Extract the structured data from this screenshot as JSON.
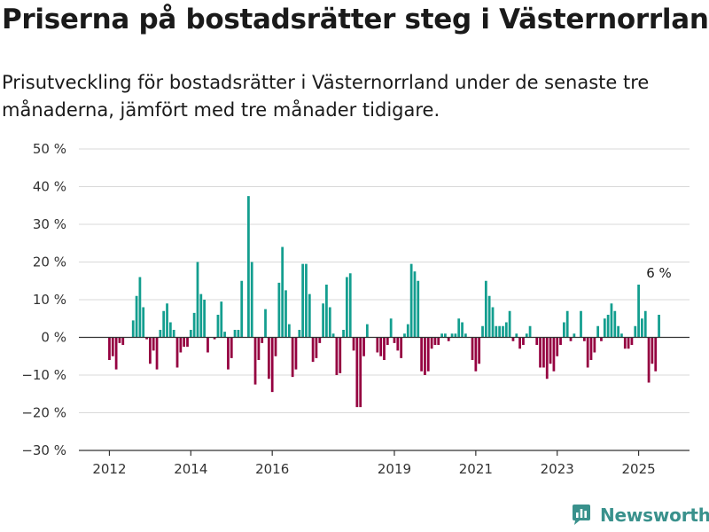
{
  "header": {
    "title": "Priserna på bostadsrätter steg i Västernorrland",
    "subtitle": "Prisutveckling för bostadsrätter i Västernorrland under de senaste tre månaderna, jämfört med tre månader tidigare."
  },
  "brand": {
    "name": "Newsworthy",
    "icon": "newsworthy-logo-icon",
    "color": "#39918c"
  },
  "chart_data": {
    "type": "bar",
    "title": "Priserna på bostadsrätter steg i Västernorrland",
    "subtitle": "Prisutveckling för bostadsrätter i Västernorrland under de senaste tre månaderna, jämfört med tre månader tidigare.",
    "unit": "%",
    "ylim": [
      -30,
      50
    ],
    "yticks": [
      {
        "value": 50,
        "label": "50 %"
      },
      {
        "value": 40,
        "label": "40 %"
      },
      {
        "value": 30,
        "label": "30 %"
      },
      {
        "value": 20,
        "label": "20 %"
      },
      {
        "value": 10,
        "label": "10 %"
      },
      {
        "value": 0,
        "label": "0 %"
      },
      {
        "value": -10,
        "label": "−10 %"
      },
      {
        "value": -20,
        "label": "−20 %"
      },
      {
        "value": -30,
        "label": "−30 %"
      }
    ],
    "xticks": [
      {
        "x": 2012,
        "label": "2012"
      },
      {
        "x": 2014,
        "label": "2014"
      },
      {
        "x": 2016,
        "label": "2016"
      },
      {
        "x": 2019,
        "label": "2019"
      },
      {
        "x": 2021,
        "label": "2021"
      },
      {
        "x": 2023,
        "label": "2023"
      },
      {
        "x": 2025,
        "label": "2025"
      }
    ],
    "xlim": [
      2011.25,
      2026.25
    ],
    "grid": true,
    "colors": {
      "positive": "#139e8f",
      "negative": "#950040",
      "grid": "#d9d9d9",
      "axis": "#333333"
    },
    "annotation": {
      "label": "6 %",
      "x": 2025.5,
      "y": 6
    },
    "points": [
      {
        "x": 2012.0,
        "y": -6
      },
      {
        "x": 2012.083,
        "y": -5
      },
      {
        "x": 2012.167,
        "y": -8.5
      },
      {
        "x": 2012.25,
        "y": -1.5
      },
      {
        "x": 2012.333,
        "y": -2
      },
      {
        "x": 2012.417,
        "y": 0
      },
      {
        "x": 2012.5,
        "y": 0
      },
      {
        "x": 2012.583,
        "y": 4.5
      },
      {
        "x": 2012.667,
        "y": 11
      },
      {
        "x": 2012.75,
        "y": 16
      },
      {
        "x": 2012.833,
        "y": 8
      },
      {
        "x": 2012.917,
        "y": -0.5
      },
      {
        "x": 2013.0,
        "y": -7
      },
      {
        "x": 2013.083,
        "y": -3.5
      },
      {
        "x": 2013.167,
        "y": -8.5
      },
      {
        "x": 2013.25,
        "y": 2
      },
      {
        "x": 2013.333,
        "y": 7
      },
      {
        "x": 2013.417,
        "y": 9
      },
      {
        "x": 2013.5,
        "y": 4
      },
      {
        "x": 2013.583,
        "y": 2
      },
      {
        "x": 2013.667,
        "y": -8
      },
      {
        "x": 2013.75,
        "y": -4
      },
      {
        "x": 2013.833,
        "y": -2.5
      },
      {
        "x": 2013.917,
        "y": -2.5
      },
      {
        "x": 2014.0,
        "y": 2
      },
      {
        "x": 2014.083,
        "y": 6.5
      },
      {
        "x": 2014.167,
        "y": 20
      },
      {
        "x": 2014.25,
        "y": 11.5
      },
      {
        "x": 2014.333,
        "y": 10
      },
      {
        "x": 2014.417,
        "y": -4
      },
      {
        "x": 2014.5,
        "y": 0
      },
      {
        "x": 2014.583,
        "y": -0.5
      },
      {
        "x": 2014.667,
        "y": 6
      },
      {
        "x": 2014.75,
        "y": 9.5
      },
      {
        "x": 2014.833,
        "y": 1.5
      },
      {
        "x": 2014.917,
        "y": -8.5
      },
      {
        "x": 2015.0,
        "y": -5.5
      },
      {
        "x": 2015.083,
        "y": 2
      },
      {
        "x": 2015.167,
        "y": 2
      },
      {
        "x": 2015.25,
        "y": 15
      },
      {
        "x": 2015.333,
        "y": 0
      },
      {
        "x": 2015.417,
        "y": 37.5
      },
      {
        "x": 2015.5,
        "y": 20
      },
      {
        "x": 2015.583,
        "y": -12.5
      },
      {
        "x": 2015.667,
        "y": -6
      },
      {
        "x": 2015.75,
        "y": -1.5
      },
      {
        "x": 2015.833,
        "y": 7.5
      },
      {
        "x": 2015.917,
        "y": -11
      },
      {
        "x": 2016.0,
        "y": -14.5
      },
      {
        "x": 2016.083,
        "y": -5
      },
      {
        "x": 2016.167,
        "y": 14.5
      },
      {
        "x": 2016.25,
        "y": 24
      },
      {
        "x": 2016.333,
        "y": 12.5
      },
      {
        "x": 2016.417,
        "y": 3.5
      },
      {
        "x": 2016.5,
        "y": -10.5
      },
      {
        "x": 2016.583,
        "y": -8.5
      },
      {
        "x": 2016.667,
        "y": 2
      },
      {
        "x": 2016.75,
        "y": 19.5
      },
      {
        "x": 2016.833,
        "y": 19.5
      },
      {
        "x": 2016.917,
        "y": 11.5
      },
      {
        "x": 2017.0,
        "y": -6.5
      },
      {
        "x": 2017.083,
        "y": -5.5
      },
      {
        "x": 2017.167,
        "y": -1.5
      },
      {
        "x": 2017.25,
        "y": 9
      },
      {
        "x": 2017.333,
        "y": 14
      },
      {
        "x": 2017.417,
        "y": 8
      },
      {
        "x": 2017.5,
        "y": 1
      },
      {
        "x": 2017.583,
        "y": -10
      },
      {
        "x": 2017.667,
        "y": -9.5
      },
      {
        "x": 2017.75,
        "y": 2
      },
      {
        "x": 2017.833,
        "y": 16
      },
      {
        "x": 2017.917,
        "y": 17
      },
      {
        "x": 2018.0,
        "y": -3.5
      },
      {
        "x": 2018.083,
        "y": -18.5
      },
      {
        "x": 2018.167,
        "y": -18.5
      },
      {
        "x": 2018.25,
        "y": -5
      },
      {
        "x": 2018.333,
        "y": 3.5
      },
      {
        "x": 2018.417,
        "y": 0
      },
      {
        "x": 2018.5,
        "y": 0
      },
      {
        "x": 2018.583,
        "y": -4
      },
      {
        "x": 2018.667,
        "y": -5
      },
      {
        "x": 2018.75,
        "y": -6
      },
      {
        "x": 2018.833,
        "y": -2
      },
      {
        "x": 2018.917,
        "y": 5
      },
      {
        "x": 2019.0,
        "y": -1.5
      },
      {
        "x": 2019.083,
        "y": -3.5
      },
      {
        "x": 2019.167,
        "y": -5.5
      },
      {
        "x": 2019.25,
        "y": 1
      },
      {
        "x": 2019.333,
        "y": 3.5
      },
      {
        "x": 2019.417,
        "y": 19.5
      },
      {
        "x": 2019.5,
        "y": 17.5
      },
      {
        "x": 2019.583,
        "y": 15
      },
      {
        "x": 2019.667,
        "y": -9
      },
      {
        "x": 2019.75,
        "y": -10
      },
      {
        "x": 2019.833,
        "y": -9
      },
      {
        "x": 2019.917,
        "y": -3
      },
      {
        "x": 2020.0,
        "y": -2
      },
      {
        "x": 2020.083,
        "y": -2
      },
      {
        "x": 2020.167,
        "y": 1
      },
      {
        "x": 2020.25,
        "y": 1
      },
      {
        "x": 2020.333,
        "y": -1
      },
      {
        "x": 2020.417,
        "y": 1
      },
      {
        "x": 2020.5,
        "y": 1
      },
      {
        "x": 2020.583,
        "y": 5
      },
      {
        "x": 2020.667,
        "y": 4
      },
      {
        "x": 2020.75,
        "y": 1
      },
      {
        "x": 2020.833,
        "y": 0
      },
      {
        "x": 2020.917,
        "y": -6
      },
      {
        "x": 2021.0,
        "y": -9
      },
      {
        "x": 2021.083,
        "y": -7
      },
      {
        "x": 2021.167,
        "y": 3
      },
      {
        "x": 2021.25,
        "y": 15
      },
      {
        "x": 2021.333,
        "y": 11
      },
      {
        "x": 2021.417,
        "y": 8
      },
      {
        "x": 2021.5,
        "y": 3
      },
      {
        "x": 2021.583,
        "y": 3
      },
      {
        "x": 2021.667,
        "y": 3
      },
      {
        "x": 2021.75,
        "y": 4
      },
      {
        "x": 2021.833,
        "y": 7
      },
      {
        "x": 2021.917,
        "y": -1
      },
      {
        "x": 2022.0,
        "y": 1
      },
      {
        "x": 2022.083,
        "y": -3
      },
      {
        "x": 2022.167,
        "y": -2
      },
      {
        "x": 2022.25,
        "y": 1
      },
      {
        "x": 2022.333,
        "y": 3
      },
      {
        "x": 2022.417,
        "y": 0
      },
      {
        "x": 2022.5,
        "y": -2
      },
      {
        "x": 2022.583,
        "y": -8
      },
      {
        "x": 2022.667,
        "y": -8
      },
      {
        "x": 2022.75,
        "y": -11
      },
      {
        "x": 2022.833,
        "y": -7
      },
      {
        "x": 2022.917,
        "y": -9
      },
      {
        "x": 2023.0,
        "y": -5
      },
      {
        "x": 2023.083,
        "y": -2
      },
      {
        "x": 2023.167,
        "y": 4
      },
      {
        "x": 2023.25,
        "y": 7
      },
      {
        "x": 2023.333,
        "y": -1
      },
      {
        "x": 2023.417,
        "y": 1
      },
      {
        "x": 2023.5,
        "y": 0
      },
      {
        "x": 2023.583,
        "y": 7
      },
      {
        "x": 2023.667,
        "y": -1
      },
      {
        "x": 2023.75,
        "y": -8
      },
      {
        "x": 2023.833,
        "y": -6
      },
      {
        "x": 2023.917,
        "y": -4
      },
      {
        "x": 2024.0,
        "y": 3
      },
      {
        "x": 2024.083,
        "y": -1
      },
      {
        "x": 2024.167,
        "y": 5
      },
      {
        "x": 2024.25,
        "y": 6
      },
      {
        "x": 2024.333,
        "y": 9
      },
      {
        "x": 2024.417,
        "y": 7
      },
      {
        "x": 2024.5,
        "y": 3
      },
      {
        "x": 2024.583,
        "y": 1
      },
      {
        "x": 2024.667,
        "y": -3
      },
      {
        "x": 2024.75,
        "y": -3
      },
      {
        "x": 2024.833,
        "y": -2
      },
      {
        "x": 2024.917,
        "y": 3
      },
      {
        "x": 2025.0,
        "y": 14
      },
      {
        "x": 2025.083,
        "y": 5
      },
      {
        "x": 2025.167,
        "y": 7
      },
      {
        "x": 2025.25,
        "y": -12
      },
      {
        "x": 2025.333,
        "y": -7
      },
      {
        "x": 2025.417,
        "y": -9
      },
      {
        "x": 2025.5,
        "y": 6
      }
    ]
  }
}
